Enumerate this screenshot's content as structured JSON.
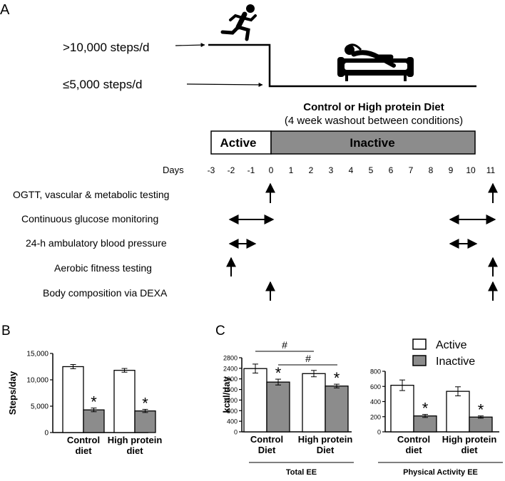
{
  "panel_a": {
    "label": "A",
    "high_steps_label": ">10,000 steps/d",
    "low_steps_label": "≤5,000 steps/d",
    "diet_title": "Control or High protein Diet",
    "diet_subtitle": "(4 week washout between conditions)",
    "active_label": "Active",
    "inactive_label": "Inactive",
    "days_label": "Days",
    "day_ticks": [
      "-3",
      "-2",
      "-1",
      "0",
      "1",
      "2",
      "3",
      "4",
      "5",
      "6",
      "7",
      "8",
      "9",
      "10",
      "11"
    ],
    "tests": [
      "OGTT, vascular & metabolic testing",
      "Continuous glucose monitoring",
      "24-h ambulatory blood pressure",
      "Aerobic fitness  testing",
      "Body composition via DEXA"
    ],
    "runner_icon": "runner-icon",
    "couch_icon": "person-on-couch-icon"
  },
  "chart_data": [
    {
      "panel": "B",
      "type": "bar",
      "title": "",
      "xlabel": "",
      "ylabel": "Steps/day",
      "ylim": [
        0,
        15000
      ],
      "yticks": [
        "0",
        "5,000",
        "10,000",
        "15,000"
      ],
      "categories": [
        "Control diet",
        "High protein diet"
      ],
      "category_lines": [
        [
          "Control",
          "diet"
        ],
        [
          "High protein",
          "diet"
        ]
      ],
      "series": [
        {
          "name": "Active",
          "values": [
            12500,
            11800
          ],
          "errors": [
            400,
            350
          ]
        },
        {
          "name": "Inactive",
          "values": [
            4300,
            4100
          ],
          "errors": [
            350,
            300
          ]
        }
      ],
      "annotations": [
        "*",
        "*"
      ]
    },
    {
      "panel": "C",
      "type": "bar",
      "title": "",
      "xlabel": "Total EE",
      "ylabel": "kcal/day",
      "ylim": [
        0,
        2800
      ],
      "yticks": [
        "0",
        "400",
        "800",
        "1200",
        "1600",
        "2000",
        "2400",
        "2800"
      ],
      "categories": [
        "Control Diet",
        "High protein Diet"
      ],
      "category_lines": [
        [
          "Control",
          "Diet"
        ],
        [
          "High protein",
          "Diet"
        ]
      ],
      "series": [
        {
          "name": "Active",
          "values": [
            2390,
            2200
          ],
          "errors": [
            170,
            120
          ]
        },
        {
          "name": "Inactive",
          "values": [
            1880,
            1730
          ],
          "errors": [
            110,
            70
          ]
        }
      ],
      "annotations": [
        "#",
        "#",
        "*",
        "*"
      ]
    },
    {
      "panel": "C",
      "type": "bar",
      "title": "",
      "xlabel": "Physical Activity EE",
      "ylabel": "",
      "ylim": [
        0,
        800
      ],
      "yticks": [
        "0",
        "200",
        "400",
        "600",
        "800"
      ],
      "categories": [
        "Control diet",
        "High protein diet"
      ],
      "category_lines": [
        [
          "Control",
          "diet"
        ],
        [
          "High protein",
          "diet"
        ]
      ],
      "series": [
        {
          "name": "Active",
          "values": [
            615,
            535
          ],
          "errors": [
            70,
            60
          ]
        },
        {
          "name": "Inactive",
          "values": [
            210,
            195
          ],
          "errors": [
            20,
            15
          ]
        }
      ],
      "annotations": [
        "*",
        "*"
      ]
    }
  ],
  "panel_labels": {
    "b": "B",
    "c": "C"
  },
  "legend": {
    "active": "Active",
    "inactive": "Inactive"
  },
  "colors": {
    "active_fill": "#ffffff",
    "inactive_fill": "#8c8c8c",
    "stroke": "#000000"
  }
}
